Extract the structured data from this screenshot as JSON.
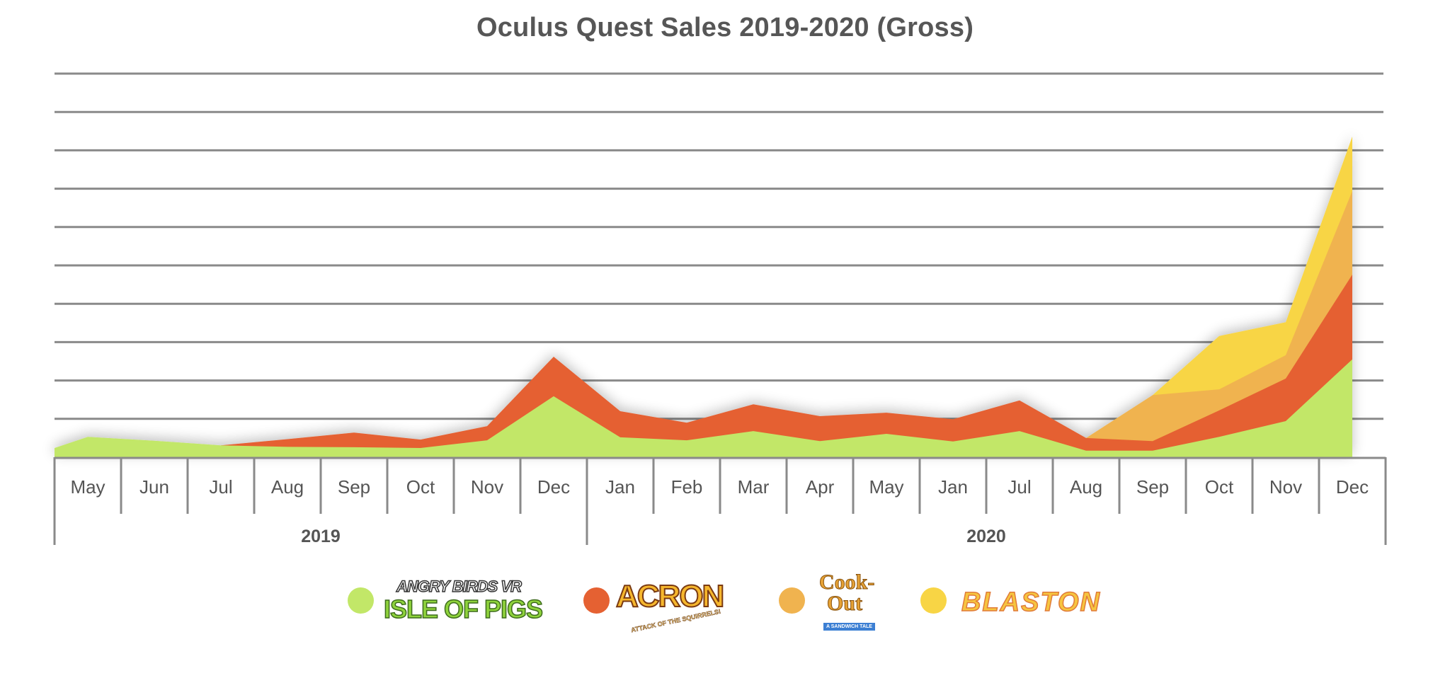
{
  "title": "Oculus Quest Sales 2019-2020 (Gross)",
  "colors": {
    "isle_of_pigs": "#c2e768",
    "acron": "#e56132",
    "cook_out": "#f0b34f",
    "blaston": "#f8d545",
    "grid": "#8a8a8a",
    "axis_text": "#555555"
  },
  "chart_data": {
    "type": "area",
    "stacked": true,
    "title": "Oculus Quest Sales 2019-2020 (Gross)",
    "xlabel": "",
    "ylabel": "",
    "y_tick_labels_visible": false,
    "y_units": "gridline intervals (unlabeled axis)",
    "ylim": [
      0,
      10
    ],
    "grid": true,
    "categories": [
      "May",
      "Jun",
      "Jul",
      "Aug",
      "Sep",
      "Oct",
      "Nov",
      "Dec",
      "Jan",
      "Feb",
      "Mar",
      "Apr",
      "May",
      "Jan",
      "Jul",
      "Aug",
      "Sep",
      "Oct",
      "Nov",
      "Dec"
    ],
    "year_groups": [
      {
        "label": "2019",
        "start_index": 0,
        "end_index": 7
      },
      {
        "label": "2020",
        "start_index": 8,
        "end_index": 19
      }
    ],
    "series": [
      {
        "name": "Angry Birds VR: Isle of Pigs",
        "color": "#c2e768",
        "values": [
          0.53,
          0.43,
          0.31,
          0.27,
          0.26,
          0.24,
          0.44,
          1.59,
          0.52,
          0.44,
          0.68,
          0.42,
          0.61,
          0.41,
          0.68,
          0.17,
          0.17,
          0.53,
          0.94,
          2.55
        ]
      },
      {
        "name": "Acron: Attack of the Squirrels!",
        "color": "#e56132",
        "values": [
          0,
          0,
          0,
          0.2,
          0.38,
          0.22,
          0.37,
          1.03,
          0.68,
          0.46,
          0.7,
          0.65,
          0.55,
          0.58,
          0.8,
          0.33,
          0.25,
          0.69,
          1.11,
          2.21
        ]
      },
      {
        "name": "Cook-Out: A Sandwich Tale",
        "color": "#f0b34f",
        "values": [
          0,
          0,
          0,
          0,
          0,
          0,
          0,
          0,
          0,
          0,
          0,
          0,
          0,
          0,
          0,
          0,
          1.2,
          0.55,
          0.61,
          2.18
        ]
      },
      {
        "name": "Blaston",
        "color": "#f8d545",
        "values": [
          0,
          0,
          0,
          0,
          0,
          0,
          0,
          0,
          0,
          0,
          0,
          0,
          0,
          0,
          0,
          0,
          0,
          1.39,
          0.86,
          1.42
        ]
      }
    ],
    "left_edge_start": {
      "Angry Birds VR: Isle of Pigs": 0.24
    },
    "legend_position": "bottom"
  },
  "legend": {
    "items": [
      {
        "name": "Angry Birds VR: Isle of Pigs",
        "logo_top": "ANGRY BIRDS VR",
        "logo_main": "ISLE OF PIGS",
        "color": "#c2e768"
      },
      {
        "name": "Acron: Attack of the Squirrels!",
        "logo_main": "ACRON",
        "logo_sub": "ATTACK OF THE SQUIRRELS!",
        "color": "#e56132"
      },
      {
        "name": "Cook-Out: A Sandwich Tale",
        "logo_top": "Cook-",
        "logo_main": "Out",
        "logo_sub": "A SANDWICH TALE",
        "color": "#f0b34f"
      },
      {
        "name": "Blaston",
        "logo_main": "BLASTON",
        "color": "#f8d545"
      }
    ]
  }
}
